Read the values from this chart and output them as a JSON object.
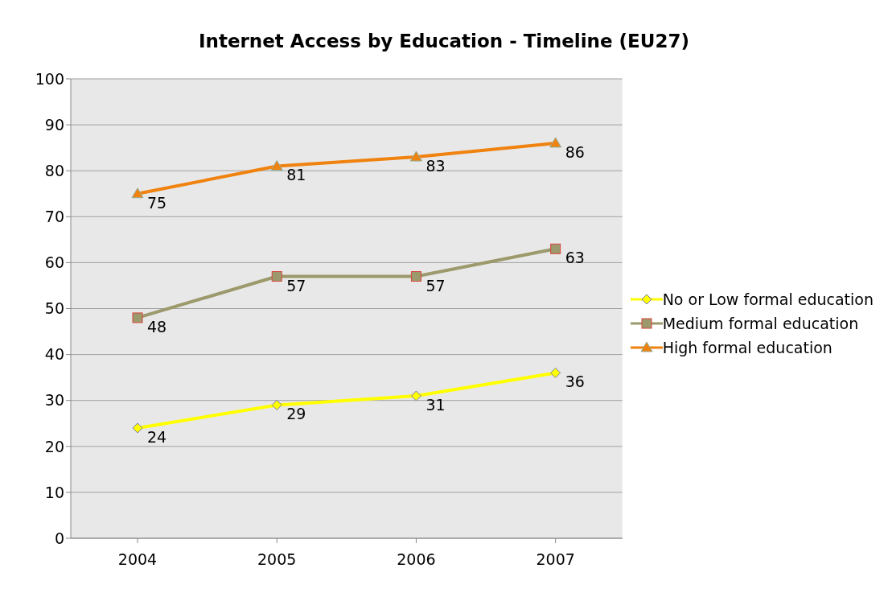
{
  "chart_data": {
    "type": "line",
    "title": "Internet Access by Education - Timeline (EU27)",
    "categories": [
      "2004",
      "2005",
      "2006",
      "2007"
    ],
    "series": [
      {
        "name": "No or Low formal education",
        "color": "#ffff00",
        "marker": "diamond",
        "values": [
          24,
          29,
          31,
          36
        ]
      },
      {
        "name": "Medium formal education",
        "color": "#9c9a6c",
        "marker": "square",
        "values": [
          48,
          57,
          57,
          63
        ]
      },
      {
        "name": "High formal education",
        "color": "#f0820f",
        "marker": "triangle",
        "values": [
          75,
          81,
          83,
          86
        ]
      }
    ],
    "ylim": [
      0,
      100
    ],
    "yticks": [
      0,
      10,
      20,
      30,
      40,
      50,
      60,
      70,
      80,
      90,
      100
    ],
    "grid": "y",
    "legend": "right",
    "data_labels": true
  }
}
